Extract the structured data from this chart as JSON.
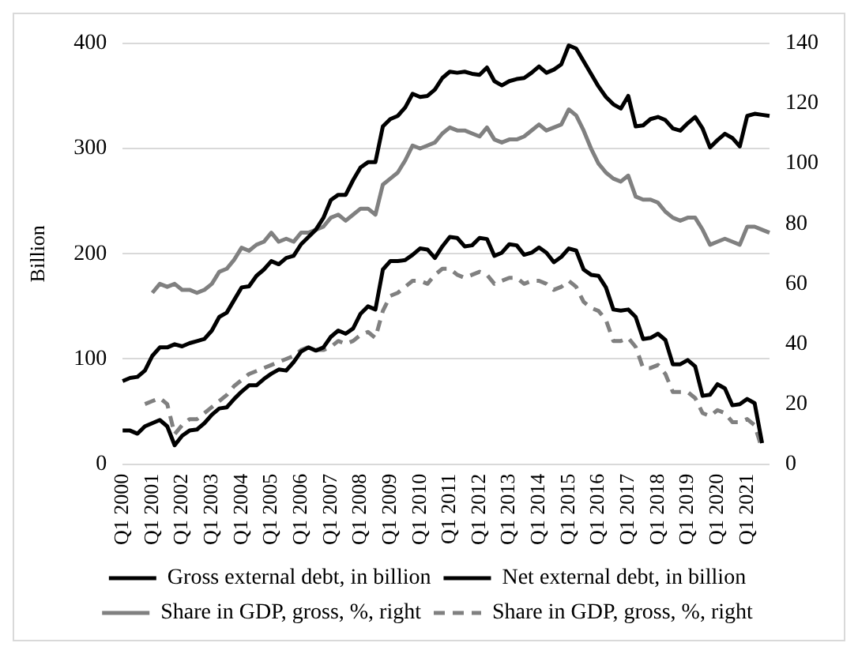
{
  "chart_data": {
    "type": "line",
    "categories": [
      "Q1 2000",
      null,
      null,
      null,
      "Q1 2001",
      null,
      null,
      null,
      "Q1 2002",
      null,
      null,
      null,
      "Q1 2003",
      null,
      null,
      null,
      "Q1 2004",
      null,
      null,
      null,
      "Q1 2005",
      null,
      null,
      null,
      "Q1 2006",
      null,
      null,
      null,
      "Q1 2007",
      null,
      null,
      null,
      "Q1 2008",
      null,
      null,
      null,
      "Q1 2009",
      null,
      null,
      null,
      "Q1 2010",
      null,
      null,
      null,
      "Q1 2011",
      null,
      null,
      null,
      "Q1 2012",
      null,
      null,
      null,
      "Q1 2013",
      null,
      null,
      null,
      "Q1 2014",
      null,
      null,
      null,
      "Q1 2015",
      null,
      null,
      null,
      "Q1 2016",
      null,
      null,
      null,
      "Q1 2017",
      null,
      null,
      null,
      "Q1 2018",
      null,
      null,
      null,
      "Q1 2019",
      null,
      null,
      null,
      "Q1 2020",
      null,
      null,
      null,
      "Q1 2021",
      null,
      null,
      null
    ],
    "ylabel": "Billion",
    "ylim": [
      0,
      400
    ],
    "yticks": [
      0,
      100,
      200,
      300,
      400
    ],
    "y2lim": [
      0,
      140
    ],
    "y2ticks": [
      0,
      20,
      40,
      60,
      80,
      100,
      120,
      140
    ],
    "grid": "y",
    "legend": "bottom",
    "marker": "none",
    "series": [
      {
        "name": "Gross external debt, in billion",
        "color": "#000000",
        "line_style": "solid",
        "values": [
          79,
          82,
          83,
          89,
          103,
          111,
          111,
          114,
          112,
          115,
          117,
          119,
          127,
          140,
          144,
          156,
          168,
          169,
          179,
          185,
          193,
          190,
          196,
          198,
          209,
          216,
          223,
          234,
          251,
          256,
          256,
          270,
          282,
          287,
          287,
          321,
          328,
          331,
          339,
          352,
          349,
          350,
          356,
          367,
          373,
          372,
          373,
          371,
          370,
          377,
          364,
          360,
          364,
          366,
          367,
          372,
          378,
          372,
          375,
          380,
          398,
          395,
          383,
          371,
          359,
          349,
          342,
          338,
          350,
          321,
          322,
          328,
          330,
          327,
          319,
          317,
          324,
          330,
          319,
          301,
          308,
          314,
          310,
          302,
          331,
          333,
          332,
          331
        ]
      },
      {
        "name": "Net external debt, in billion",
        "color": "#000000",
        "line_style": "solid",
        "values": [
          32,
          32,
          29,
          36,
          39,
          42,
          36,
          18,
          27,
          32,
          33,
          39,
          47,
          53,
          54,
          62,
          69,
          75,
          75,
          81,
          86,
          90,
          89,
          97,
          107,
          111,
          108,
          111,
          121,
          127,
          124,
          129,
          143,
          150,
          147,
          185,
          193,
          193,
          194,
          199,
          205,
          204,
          196,
          207,
          216,
          215,
          207,
          208,
          215,
          214,
          198,
          201,
          209,
          208,
          199,
          201,
          206,
          201,
          192,
          197,
          205,
          203,
          185,
          180,
          179,
          168,
          147,
          146,
          147,
          140,
          119,
          120,
          124,
          118,
          95,
          95,
          99,
          93,
          65,
          66,
          76,
          72,
          56,
          57,
          62,
          58,
          20,
          null
        ]
      },
      {
        "name": "Share in GDP, gross, %, right",
        "color": "#808080",
        "line_style": "solid",
        "axis": "y2",
        "values": [
          null,
          null,
          null,
          null,
          57,
          60,
          59,
          60,
          58,
          58,
          57,
          58,
          60,
          64,
          65,
          68,
          72,
          71,
          73,
          74,
          77,
          74,
          75,
          74,
          77,
          77,
          78,
          79,
          82,
          83,
          81,
          83,
          85,
          85,
          83,
          93,
          95,
          97,
          101,
          106,
          105,
          106,
          107,
          110,
          112,
          111,
          111,
          110,
          109,
          112,
          108,
          107,
          108,
          108,
          109,
          111,
          113,
          111,
          112,
          113,
          118,
          116,
          111,
          105,
          100,
          97,
          95,
          94,
          96,
          89,
          88,
          88,
          87,
          84,
          82,
          81,
          82,
          82,
          78,
          73,
          74,
          75,
          74,
          73,
          79,
          79,
          78,
          77
        ]
      },
      {
        "name": "Share in GDP, gross, %, right",
        "color": "#808080",
        "line_style": "dashed",
        "axis": "y2",
        "values": [
          null,
          null,
          null,
          20,
          21,
          22,
          20,
          10,
          13,
          15,
          15,
          17,
          19,
          21,
          23,
          26,
          28,
          30,
          31,
          32,
          33,
          34,
          35,
          36,
          38,
          39,
          38,
          38,
          39,
          41,
          40,
          41,
          43,
          44,
          42,
          51,
          56,
          57,
          59,
          61,
          61,
          60,
          63,
          65,
          65,
          63,
          62,
          63,
          64,
          63,
          60,
          61,
          62,
          62,
          60,
          61,
          61,
          60,
          58,
          59,
          61,
          59,
          54,
          52,
          51,
          48,
          41,
          41,
          42,
          39,
          32,
          32,
          33,
          30,
          24,
          24,
          24,
          22,
          17,
          16,
          18,
          17,
          14,
          14,
          15,
          13,
          5,
          null
        ]
      }
    ]
  }
}
